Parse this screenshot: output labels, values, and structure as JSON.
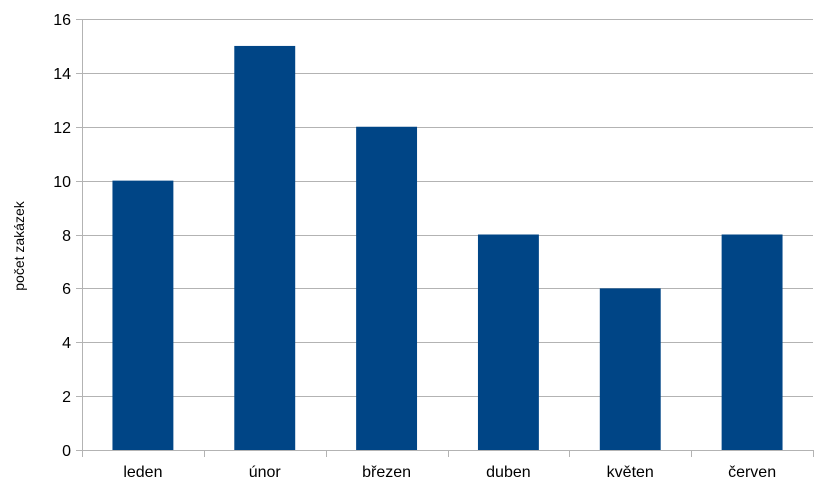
{
  "chart_data": {
    "type": "bar",
    "title": "",
    "xlabel": "",
    "ylabel": "počet zakázek",
    "categories": [
      "leden",
      "únor",
      "březen",
      "duben",
      "květen",
      "červen"
    ],
    "values": [
      10,
      15,
      12,
      8,
      6,
      8
    ],
    "ylim": [
      0,
      16
    ],
    "yticks": [
      "0",
      "2",
      "4",
      "6",
      "8",
      "10",
      "12",
      "14",
      "16"
    ],
    "grid": true,
    "legend": "none",
    "colors": {
      "bar": "#004586",
      "grid": "#b3b3b3"
    }
  }
}
